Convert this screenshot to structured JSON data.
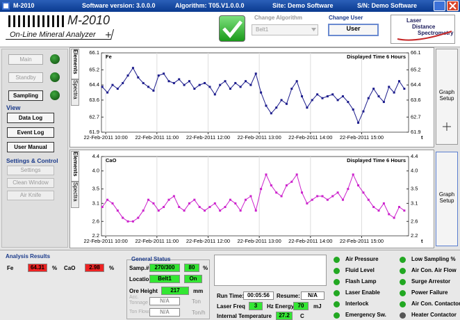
{
  "window": {
    "title": "M-2010",
    "software_version": "Software version: 3.0.0.0",
    "algorithm": "Algorithm: T05.V1.0.0.0",
    "site": "Site: Demo Software",
    "serial": "S/N: Demo Software"
  },
  "header": {
    "product": "M-2010",
    "subtitle": "On-Line Mineral Analyzer",
    "change_algorithm": "Change Algorithm",
    "algorithm_value": "Belt1",
    "change_user": "Change User",
    "user_button": "User",
    "logo": [
      "Laser",
      "Distance",
      "Spectrometry"
    ]
  },
  "sidebar": {
    "modes": [
      "Main",
      "Standby",
      "Sampling"
    ],
    "view_title": "View",
    "view": [
      "Data Log",
      "Event Log",
      "User Manual"
    ],
    "settings_title": "Settings & Control",
    "settings": [
      "Settings",
      "Clean Window",
      "Air Knife"
    ]
  },
  "tabs": [
    "Elements",
    "Spectra"
  ],
  "graph_setup": "Graph Setup",
  "chart_data": [
    {
      "type": "line",
      "title": "Displayed Time 6 Hours",
      "xlabel": "t",
      "x": [
        "22-Feb-2011 09:56",
        "22-Feb-2011 10:02",
        "22-Feb-2011 10:08",
        "22-Feb-2011 10:14",
        "22-Feb-2011 10:20",
        "22-Feb-2011 10:26",
        "22-Feb-2011 10:32",
        "22-Feb-2011 10:38",
        "22-Feb-2011 10:44",
        "22-Feb-2011 10:50",
        "22-Feb-2011 10:56",
        "22-Feb-2011 11:02",
        "22-Feb-2011 11:08",
        "22-Feb-2011 11:14",
        "22-Feb-2011 11:20",
        "22-Feb-2011 11:26",
        "22-Feb-2011 11:32",
        "22-Feb-2011 11:38",
        "22-Feb-2011 11:44",
        "22-Feb-2011 11:50",
        "22-Feb-2011 11:56",
        "22-Feb-2011 12:02",
        "22-Feb-2011 12:08",
        "22-Feb-2011 12:14",
        "22-Feb-2011 12:20",
        "22-Feb-2011 12:26",
        "22-Feb-2011 12:32",
        "22-Feb-2011 12:38",
        "22-Feb-2011 12:44",
        "22-Feb-2011 12:50",
        "22-Feb-2011 12:56",
        "22-Feb-2011 13:02",
        "22-Feb-2011 13:08",
        "22-Feb-2011 13:14",
        "22-Feb-2011 13:20",
        "22-Feb-2011 13:26",
        "22-Feb-2011 13:32",
        "22-Feb-2011 13:38",
        "22-Feb-2011 13:44",
        "22-Feb-2011 13:50",
        "22-Feb-2011 13:56",
        "22-Feb-2011 14:02",
        "22-Feb-2011 14:08",
        "22-Feb-2011 14:14",
        "22-Feb-2011 14:20",
        "22-Feb-2011 14:26",
        "22-Feb-2011 14:32",
        "22-Feb-2011 14:38",
        "22-Feb-2011 14:44",
        "22-Feb-2011 14:50",
        "22-Feb-2011 14:56",
        "22-Feb-2011 15:02",
        "22-Feb-2011 15:08",
        "22-Feb-2011 15:14",
        "22-Feb-2011 15:20",
        "22-Feb-2011 15:26",
        "22-Feb-2011 15:32",
        "22-Feb-2011 15:38",
        "22-Feb-2011 15:44",
        "22-Feb-2011 15:50"
      ],
      "series": [
        {
          "name": "Fe",
          "color": "#1c1c8c",
          "values": [
            64.3,
            64.0,
            64.4,
            64.2,
            64.5,
            64.9,
            65.3,
            64.8,
            64.5,
            64.3,
            64.1,
            64.9,
            65.0,
            64.6,
            64.5,
            64.7,
            64.4,
            64.6,
            64.2,
            64.4,
            64.5,
            64.3,
            63.9,
            64.4,
            64.6,
            64.2,
            64.5,
            64.3,
            64.6,
            64.4,
            65.0,
            64.0,
            63.3,
            62.9,
            63.2,
            63.6,
            63.4,
            64.2,
            64.6,
            63.8,
            63.2,
            63.6,
            63.9,
            63.7,
            63.8,
            63.9,
            63.6,
            63.8,
            63.5,
            63.1,
            62.4,
            63.0,
            63.7,
            64.2,
            63.8,
            63.5,
            64.3,
            64.0,
            64.6,
            64.2
          ]
        }
      ],
      "xlim": [
        "22-Feb-2011 09:55",
        "22-Feb-2011 15:55"
      ],
      "xticks": [
        "22-Feb-2011 10:00",
        "22-Feb-2011 11:00",
        "22-Feb-2011 12:00",
        "22-Feb-2011 13:00",
        "22-Feb-2011 14:00",
        "22-Feb-2011 15:00"
      ],
      "ylim": [
        61.9,
        66.1
      ],
      "yticks": [
        61.9,
        62.7,
        63.6,
        64.4,
        65.2,
        66.1
      ],
      "grid": "x",
      "markers": true
    },
    {
      "type": "line",
      "title": "Displayed Time 6 Hours",
      "xlabel": "t",
      "x": [
        "22-Feb-2011 09:56",
        "22-Feb-2011 10:02",
        "22-Feb-2011 10:08",
        "22-Feb-2011 10:14",
        "22-Feb-2011 10:20",
        "22-Feb-2011 10:26",
        "22-Feb-2011 10:32",
        "22-Feb-2011 10:38",
        "22-Feb-2011 10:44",
        "22-Feb-2011 10:50",
        "22-Feb-2011 10:56",
        "22-Feb-2011 11:02",
        "22-Feb-2011 11:08",
        "22-Feb-2011 11:14",
        "22-Feb-2011 11:20",
        "22-Feb-2011 11:26",
        "22-Feb-2011 11:32",
        "22-Feb-2011 11:38",
        "22-Feb-2011 11:44",
        "22-Feb-2011 11:50",
        "22-Feb-2011 11:56",
        "22-Feb-2011 12:02",
        "22-Feb-2011 12:08",
        "22-Feb-2011 12:14",
        "22-Feb-2011 12:20",
        "22-Feb-2011 12:26",
        "22-Feb-2011 12:32",
        "22-Feb-2011 12:38",
        "22-Feb-2011 12:44",
        "22-Feb-2011 12:50",
        "22-Feb-2011 12:56",
        "22-Feb-2011 13:02",
        "22-Feb-2011 13:08",
        "22-Feb-2011 13:14",
        "22-Feb-2011 13:20",
        "22-Feb-2011 13:26",
        "22-Feb-2011 13:32",
        "22-Feb-2011 13:38",
        "22-Feb-2011 13:44",
        "22-Feb-2011 13:50",
        "22-Feb-2011 13:56",
        "22-Feb-2011 14:02",
        "22-Feb-2011 14:08",
        "22-Feb-2011 14:14",
        "22-Feb-2011 14:20",
        "22-Feb-2011 14:26",
        "22-Feb-2011 14:32",
        "22-Feb-2011 14:38",
        "22-Feb-2011 14:44",
        "22-Feb-2011 14:50",
        "22-Feb-2011 14:56",
        "22-Feb-2011 15:02",
        "22-Feb-2011 15:08",
        "22-Feb-2011 15:14",
        "22-Feb-2011 15:20",
        "22-Feb-2011 15:26",
        "22-Feb-2011 15:32",
        "22-Feb-2011 15:38",
        "22-Feb-2011 15:44",
        "22-Feb-2011 15:50"
      ],
      "series": [
        {
          "name": "CaO",
          "color": "#cc22cc",
          "values": [
            3.0,
            3.2,
            3.1,
            2.9,
            2.7,
            2.6,
            2.6,
            2.7,
            2.9,
            3.2,
            3.1,
            2.9,
            3.0,
            3.2,
            3.3,
            3.0,
            2.9,
            3.1,
            3.2,
            3.0,
            2.9,
            3.0,
            3.1,
            2.9,
            3.0,
            3.2,
            3.1,
            2.9,
            3.2,
            3.3,
            2.9,
            3.5,
            3.9,
            3.6,
            3.4,
            3.3,
            3.6,
            3.7,
            3.9,
            3.4,
            3.1,
            3.2,
            3.3,
            3.3,
            3.2,
            3.3,
            3.4,
            3.2,
            3.5,
            3.9,
            3.6,
            3.4,
            3.2,
            3.0,
            2.9,
            3.1,
            2.8,
            2.7,
            3.0,
            2.9
          ]
        }
      ],
      "xlim": [
        "22-Feb-2011 09:55",
        "22-Feb-2011 15:55"
      ],
      "xticks": [
        "22-Feb-2011 10:00",
        "22-Feb-2011 11:00",
        "22-Feb-2011 12:00",
        "22-Feb-2011 13:00",
        "22-Feb-2011 14:00",
        "22-Feb-2011 15:00"
      ],
      "ylim": [
        2.2,
        4.4
      ],
      "yticks": [
        2.2,
        2.6,
        3.1,
        3.5,
        {
          "value": 4.0,
          "label": "4.0"
        },
        4.4
      ],
      "grid": "x",
      "markers": true
    }
  ],
  "analysis": {
    "title": "Analysis Results",
    "items": [
      {
        "label": "Fe",
        "value": "64.31",
        "unit": "%"
      },
      {
        "label": "CaO",
        "value": "2.98",
        "unit": "%"
      }
    ]
  },
  "general_status": {
    "title": "General Status",
    "sample_label": "Samp.#",
    "sample": "270/300",
    "sample_pct": "80",
    "sample_unit": "%",
    "location_label": "Location",
    "location": "Belt1",
    "location_state": "On",
    "ore_height_label": "Ore Height",
    "ore_height": "217",
    "ore_height_unit": "mm",
    "tonnage_label": "Acc. Tonnage",
    "tonnage": "N/A",
    "tonnage_unit": "Ton",
    "flow_label": "Ton Flow.",
    "flow": "N/A",
    "flow_unit": "Ton/h"
  },
  "run": {
    "run_time_label": "Run Time:",
    "run_time": "00:05:56",
    "resume_label": "Resume:",
    "resume": "N/A",
    "laser_freq_label": "Laser Freq",
    "laser_freq": "3",
    "energy_label": "Hz Energy",
    "energy": "70",
    "energy_unit": "mJ",
    "temperature_label": "Internal Temperature",
    "temperature": "27.2",
    "temperature_unit": "C"
  },
  "status_lights": [
    {
      "label": "Air Pressure",
      "color": "#22a822"
    },
    {
      "label": "Fluid Level",
      "color": "#22a822"
    },
    {
      "label": "Flash Lamp",
      "color": "#22a822"
    },
    {
      "label": "Laser Enable",
      "color": "#22a822"
    },
    {
      "label": "Interlock",
      "color": "#22a822"
    },
    {
      "label": "Emergency Sw.",
      "color": "#22a822"
    },
    {
      "label": "Low Sampling %",
      "color": "#22a822"
    },
    {
      "label": "Air Con. Air Flow",
      "color": "#22a822"
    },
    {
      "label": "Surge Arrestor",
      "color": "#22a822"
    },
    {
      "label": "Power Failure",
      "color": "#22a822"
    },
    {
      "label": "Air Con. Contactor",
      "color": "#22a822"
    },
    {
      "label": "Heater Contactor",
      "color": "#555555"
    }
  ]
}
